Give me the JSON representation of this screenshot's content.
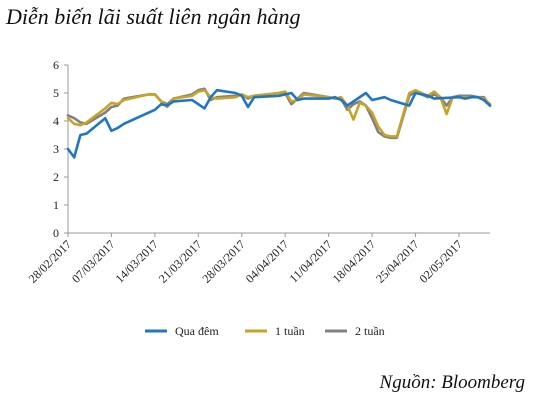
{
  "title": "Diễn biến lãi suất liên ngân hàng",
  "source": "Nguồn: Bloomberg",
  "chart_data": {
    "type": "line",
    "title": "Diễn biến lãi suất liên ngân hàng",
    "xlabel": "",
    "ylabel": "",
    "ylim": [
      0,
      6
    ],
    "yticks": [
      0,
      1,
      2,
      3,
      4,
      5,
      6
    ],
    "xlim": [
      "2017-02-28",
      "2017-05-07"
    ],
    "xtick_labels": [
      "28/02/2017",
      "07/03/2017",
      "14/03/2017",
      "21/03/2017",
      "28/03/2017",
      "04/04/2017",
      "11/04/2017",
      "18/04/2017",
      "25/04/2017",
      "02/05/2017"
    ],
    "grid": false,
    "legend_position": "bottom",
    "series": [
      {
        "name": "Qua đêm",
        "color": "#1f77c4",
        "points": [
          [
            "2017-02-28",
            3.0
          ],
          [
            "2017-03-01",
            2.7
          ],
          [
            "2017-03-02",
            3.5
          ],
          [
            "2017-03-03",
            3.55
          ],
          [
            "2017-03-06",
            4.1
          ],
          [
            "2017-03-07",
            3.65
          ],
          [
            "2017-03-08",
            3.75
          ],
          [
            "2017-03-09",
            3.9
          ],
          [
            "2017-03-13",
            4.3
          ],
          [
            "2017-03-14",
            4.4
          ],
          [
            "2017-03-15",
            4.6
          ],
          [
            "2017-03-16",
            4.55
          ],
          [
            "2017-03-17",
            4.7
          ],
          [
            "2017-03-20",
            4.75
          ],
          [
            "2017-03-21",
            4.6
          ],
          [
            "2017-03-22",
            4.45
          ],
          [
            "2017-03-23",
            4.85
          ],
          [
            "2017-03-24",
            5.1
          ],
          [
            "2017-03-27",
            5.0
          ],
          [
            "2017-03-28",
            4.9
          ],
          [
            "2017-03-29",
            4.5
          ],
          [
            "2017-03-30",
            4.85
          ],
          [
            "2017-04-03",
            4.9
          ],
          [
            "2017-04-04",
            4.95
          ],
          [
            "2017-04-05",
            5.0
          ],
          [
            "2017-04-06",
            4.75
          ],
          [
            "2017-04-07",
            4.8
          ],
          [
            "2017-04-11",
            4.8
          ],
          [
            "2017-04-12",
            4.85
          ],
          [
            "2017-04-13",
            4.75
          ],
          [
            "2017-04-14",
            4.55
          ],
          [
            "2017-04-17",
            5.0
          ],
          [
            "2017-04-18",
            4.75
          ],
          [
            "2017-04-19",
            4.8
          ],
          [
            "2017-04-20",
            4.85
          ],
          [
            "2017-04-21",
            4.75
          ],
          [
            "2017-04-24",
            4.55
          ],
          [
            "2017-04-25",
            5.0
          ],
          [
            "2017-04-26",
            4.95
          ],
          [
            "2017-04-27",
            4.9
          ],
          [
            "2017-04-28",
            4.8
          ],
          [
            "2017-05-02",
            4.85
          ],
          [
            "2017-05-03",
            4.8
          ],
          [
            "2017-05-04",
            4.85
          ],
          [
            "2017-05-05",
            4.85
          ],
          [
            "2017-05-06",
            4.75
          ],
          [
            "2017-05-07",
            4.55
          ]
        ]
      },
      {
        "name": "1 tuần",
        "color": "#c9a227",
        "points": [
          [
            "2017-02-28",
            4.1
          ],
          [
            "2017-03-01",
            3.9
          ],
          [
            "2017-03-02",
            3.85
          ],
          [
            "2017-03-03",
            3.95
          ],
          [
            "2017-03-06",
            4.45
          ],
          [
            "2017-03-07",
            4.65
          ],
          [
            "2017-03-08",
            4.6
          ],
          [
            "2017-03-09",
            4.75
          ],
          [
            "2017-03-13",
            4.95
          ],
          [
            "2017-03-14",
            4.95
          ],
          [
            "2017-03-15",
            4.7
          ],
          [
            "2017-03-16",
            4.5
          ],
          [
            "2017-03-17",
            4.8
          ],
          [
            "2017-03-20",
            4.9
          ],
          [
            "2017-03-21",
            5.05
          ],
          [
            "2017-03-22",
            5.1
          ],
          [
            "2017-03-23",
            4.85
          ],
          [
            "2017-03-24",
            4.8
          ],
          [
            "2017-03-27",
            4.85
          ],
          [
            "2017-03-28",
            4.95
          ],
          [
            "2017-03-29",
            4.85
          ],
          [
            "2017-03-30",
            4.9
          ],
          [
            "2017-04-03",
            5.0
          ],
          [
            "2017-04-04",
            5.05
          ],
          [
            "2017-04-05",
            4.7
          ],
          [
            "2017-04-06",
            4.75
          ],
          [
            "2017-04-07",
            4.95
          ],
          [
            "2017-04-11",
            4.85
          ],
          [
            "2017-04-12",
            4.8
          ],
          [
            "2017-04-13",
            4.85
          ],
          [
            "2017-04-14",
            4.55
          ],
          [
            "2017-04-15",
            4.05
          ],
          [
            "2017-04-16",
            4.65
          ],
          [
            "2017-04-17",
            4.55
          ],
          [
            "2017-04-18",
            4.3
          ],
          [
            "2017-04-19",
            3.8
          ],
          [
            "2017-04-20",
            3.5
          ],
          [
            "2017-04-21",
            3.45
          ],
          [
            "2017-04-22",
            3.45
          ],
          [
            "2017-04-24",
            5.0
          ],
          [
            "2017-04-25",
            5.1
          ],
          [
            "2017-04-26",
            5.0
          ],
          [
            "2017-04-27",
            4.9
          ],
          [
            "2017-04-28",
            5.05
          ],
          [
            "2017-04-29",
            4.85
          ],
          [
            "2017-04-30",
            4.25
          ],
          [
            "2017-05-01",
            4.85
          ],
          [
            "2017-05-02",
            4.85
          ],
          [
            "2017-05-04",
            4.85
          ],
          [
            "2017-05-05",
            4.85
          ],
          [
            "2017-05-06",
            4.8
          ],
          [
            "2017-05-07",
            4.6
          ]
        ]
      },
      {
        "name": "2 tuần",
        "color": "#808080",
        "points": [
          [
            "2017-02-28",
            4.2
          ],
          [
            "2017-03-01",
            4.1
          ],
          [
            "2017-03-02",
            3.95
          ],
          [
            "2017-03-03",
            3.9
          ],
          [
            "2017-03-06",
            4.3
          ],
          [
            "2017-03-07",
            4.5
          ],
          [
            "2017-03-08",
            4.55
          ],
          [
            "2017-03-09",
            4.8
          ],
          [
            "2017-03-13",
            4.95
          ],
          [
            "2017-03-14",
            4.95
          ],
          [
            "2017-03-15",
            4.7
          ],
          [
            "2017-03-16",
            4.6
          ],
          [
            "2017-03-17",
            4.8
          ],
          [
            "2017-03-20",
            4.95
          ],
          [
            "2017-03-21",
            5.1
          ],
          [
            "2017-03-22",
            5.15
          ],
          [
            "2017-03-23",
            4.75
          ],
          [
            "2017-03-24",
            4.85
          ],
          [
            "2017-03-27",
            4.9
          ],
          [
            "2017-03-28",
            4.95
          ],
          [
            "2017-03-29",
            4.8
          ],
          [
            "2017-03-30",
            4.9
          ],
          [
            "2017-04-03",
            5.0
          ],
          [
            "2017-04-04",
            5.0
          ],
          [
            "2017-04-05",
            4.6
          ],
          [
            "2017-04-06",
            4.8
          ],
          [
            "2017-04-07",
            5.0
          ],
          [
            "2017-04-11",
            4.85
          ],
          [
            "2017-04-12",
            4.8
          ],
          [
            "2017-04-13",
            4.8
          ],
          [
            "2017-04-14",
            4.4
          ],
          [
            "2017-04-15",
            4.6
          ],
          [
            "2017-04-16",
            4.7
          ],
          [
            "2017-04-17",
            4.55
          ],
          [
            "2017-04-18",
            4.1
          ],
          [
            "2017-04-19",
            3.6
          ],
          [
            "2017-04-20",
            3.45
          ],
          [
            "2017-04-21",
            3.4
          ],
          [
            "2017-04-22",
            3.4
          ],
          [
            "2017-04-24",
            4.9
          ],
          [
            "2017-04-25",
            5.05
          ],
          [
            "2017-04-26",
            4.95
          ],
          [
            "2017-04-27",
            4.85
          ],
          [
            "2017-04-28",
            4.95
          ],
          [
            "2017-04-29",
            4.85
          ],
          [
            "2017-04-30",
            4.55
          ],
          [
            "2017-05-01",
            4.85
          ],
          [
            "2017-05-02",
            4.9
          ],
          [
            "2017-05-04",
            4.9
          ],
          [
            "2017-05-05",
            4.85
          ],
          [
            "2017-05-06",
            4.85
          ],
          [
            "2017-05-07",
            4.55
          ]
        ]
      }
    ]
  }
}
